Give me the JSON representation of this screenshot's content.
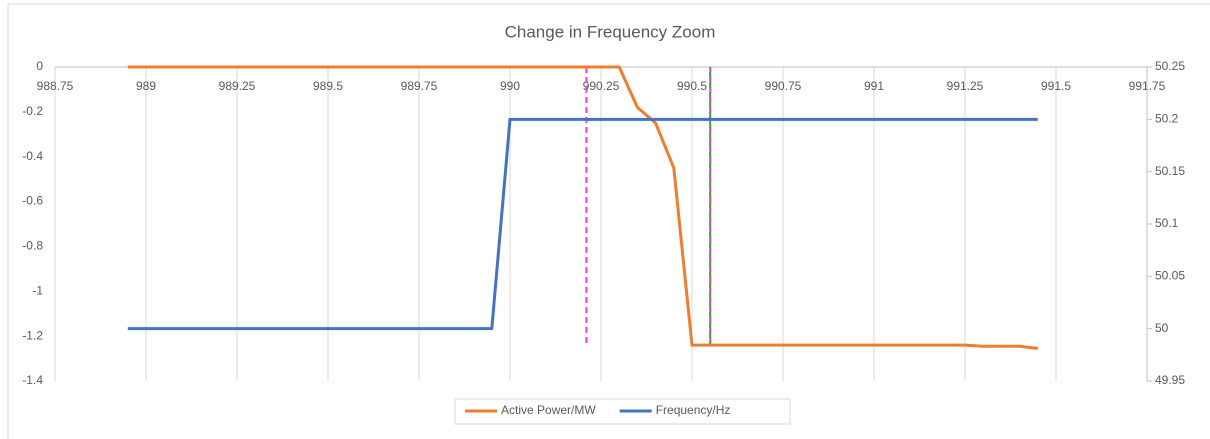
{
  "chart_data": {
    "type": "line",
    "title": "Change in Frequency Zoom",
    "xlim": [
      988.75,
      991.75
    ],
    "xticks": [
      988.75,
      989,
      989.25,
      989.5,
      989.75,
      990,
      990.25,
      990.5,
      990.75,
      991,
      991.25,
      991.5,
      991.75
    ],
    "ylim": [
      -1.4,
      0
    ],
    "yticks": [
      0,
      -0.2,
      -0.4,
      -0.6,
      -0.8,
      -1,
      -1.2,
      -1.4
    ],
    "y2lim": [
      49.95,
      50.25
    ],
    "y2ticks": [
      50.25,
      50.2,
      50.15,
      50.1,
      50.05,
      50,
      49.95
    ],
    "grid": true,
    "legend": "bottom",
    "series": [
      {
        "name": "Active Power/MW",
        "color": "#ed7d31",
        "x": [
          988.95,
          990.3,
          990.35,
          990.4,
          990.45,
          990.5,
          991.25,
          991.3,
          991.4,
          991.45
        ],
        "values": [
          0,
          0,
          -0.18,
          -0.25,
          -0.45,
          -1.24,
          -1.24,
          -1.245,
          -1.245,
          -1.255
        ]
      },
      {
        "name": "Frequency/Hz",
        "color": "#4472c4",
        "axis": "y2",
        "x": [
          988.95,
          989.95,
          990,
          991.45
        ],
        "values": [
          50,
          50,
          50.2,
          50.2
        ]
      }
    ],
    "vlines": [
      {
        "x": 990.21,
        "y": [
          0,
          -1.24
        ],
        "color": "#e040e0"
      },
      {
        "x": 990.55,
        "y": [
          0,
          -1.24
        ],
        "color": "#4a9a3a"
      }
    ]
  }
}
